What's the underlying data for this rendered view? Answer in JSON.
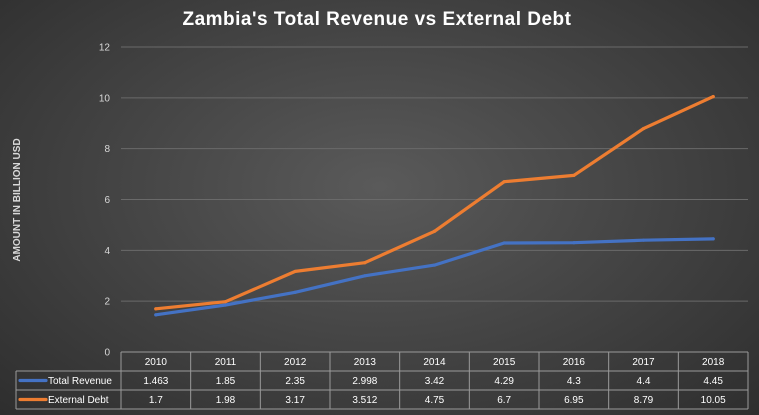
{
  "chart_data": {
    "type": "line",
    "title": "Zambia's Total Revenue vs External Debt",
    "ylabel": "AMOUNT IN BILLION USD",
    "xlabel": "",
    "ylim": [
      0,
      12
    ],
    "yticks": [
      "0",
      "2",
      "4",
      "6",
      "8",
      "10",
      "12"
    ],
    "grid": true,
    "legend": "data-table",
    "categories": [
      "2010",
      "2011",
      "2012",
      "2013",
      "2014",
      "2015",
      "2016",
      "2017",
      "2018"
    ],
    "series": [
      {
        "name": "Total Revenue",
        "color": "#4472c4",
        "values": [
          1.463,
          1.85,
          2.35,
          2.998,
          3.42,
          4.29,
          4.3,
          4.4,
          4.45
        ],
        "labels": [
          "1.463",
          "1.85",
          "2.35",
          "2.998",
          "3.42",
          "4.29",
          "4.3",
          "4.4",
          "4.45"
        ]
      },
      {
        "name": "External Debt",
        "color": "#ed7d31",
        "values": [
          1.7,
          1.98,
          3.17,
          3.512,
          4.75,
          6.7,
          6.95,
          8.79,
          10.05
        ],
        "labels": [
          "1.7",
          "1.98",
          "3.17",
          "3.512",
          "4.75",
          "6.7",
          "6.95",
          "8.79",
          "10.05"
        ]
      }
    ]
  }
}
